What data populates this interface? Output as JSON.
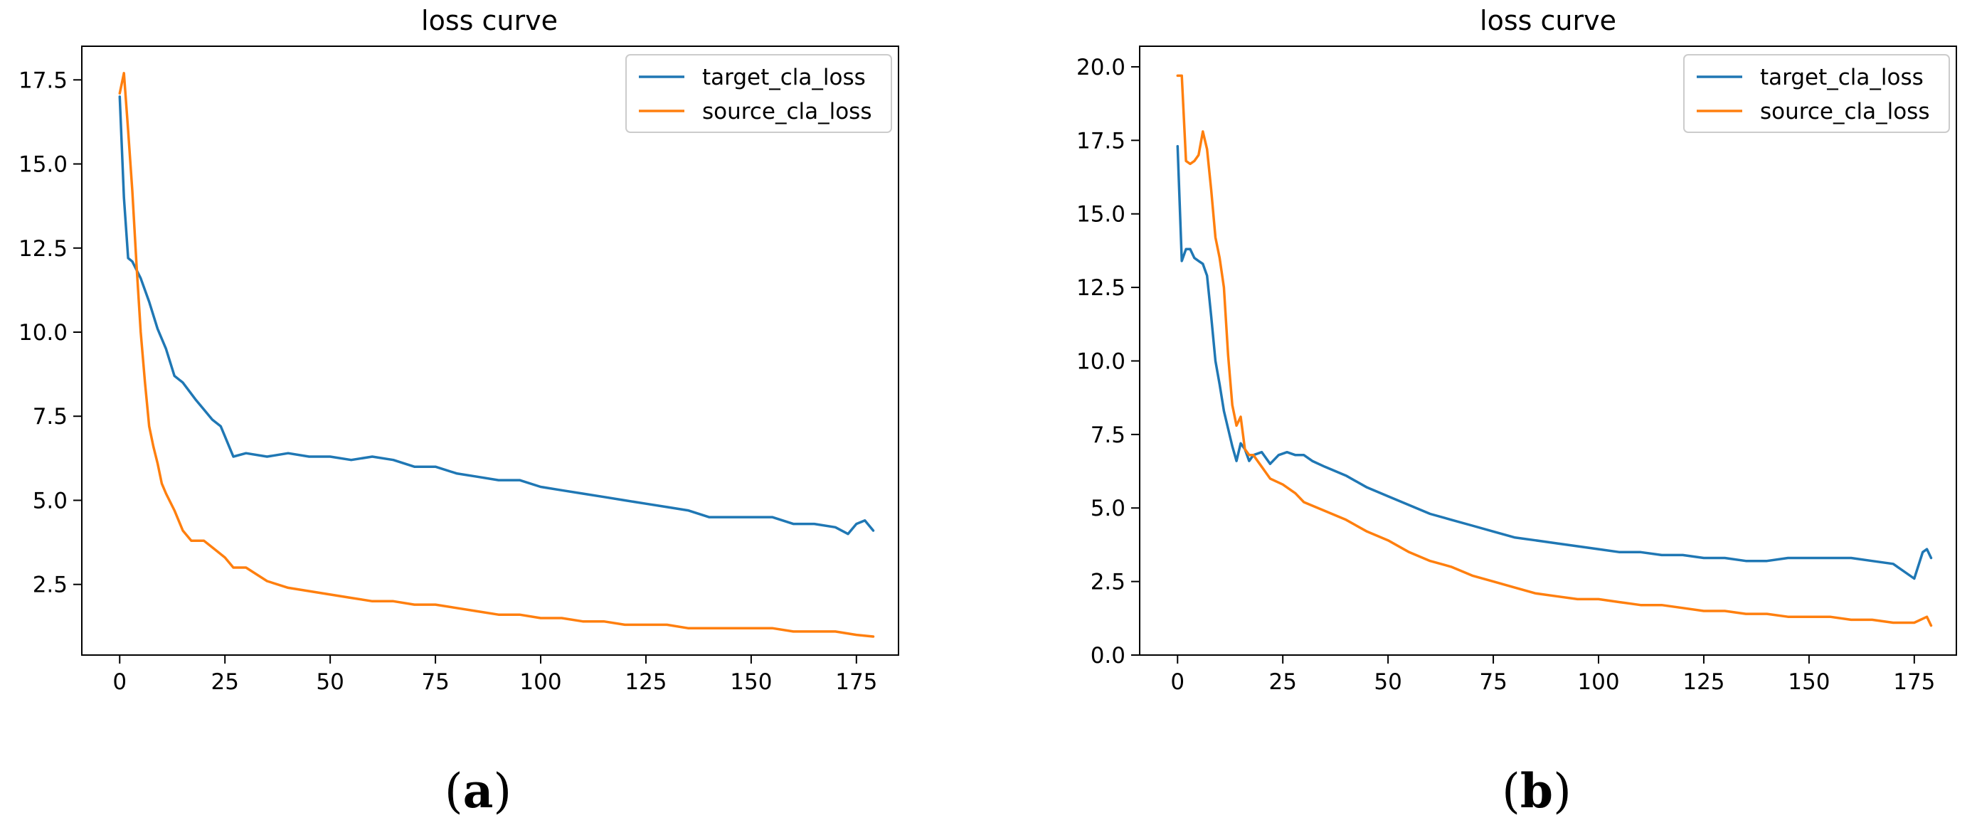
{
  "chart_data": [
    {
      "type": "line",
      "panel_label_open": "(",
      "panel_label_letter": "a",
      "panel_label_close": ")",
      "title": "loss curve",
      "xlabel": "",
      "ylabel": "",
      "xlim": [
        -9,
        185
      ],
      "ylim": [
        0.4,
        18.5
      ],
      "xticks": [
        0,
        25,
        50,
        75,
        100,
        125,
        150,
        175
      ],
      "yticks": [
        2.5,
        5.0,
        7.5,
        10.0,
        12.5,
        15.0,
        17.5
      ],
      "legend_position": "top-right",
      "series": [
        {
          "name": "target_cla_loss",
          "color": "#1f77b4",
          "x": [
            0,
            1,
            2,
            3,
            5,
            7,
            9,
            11,
            13,
            15,
            18,
            20,
            22,
            24,
            25,
            27,
            30,
            35,
            40,
            45,
            50,
            55,
            60,
            65,
            70,
            75,
            80,
            85,
            90,
            95,
            100,
            105,
            110,
            115,
            120,
            125,
            130,
            135,
            140,
            145,
            150,
            155,
            160,
            165,
            170,
            173,
            175,
            177,
            179
          ],
          "values": [
            17.0,
            14.0,
            12.2,
            12.1,
            11.6,
            10.9,
            10.1,
            9.5,
            8.7,
            8.5,
            8.0,
            7.7,
            7.4,
            7.2,
            6.9,
            6.3,
            6.4,
            6.3,
            6.4,
            6.3,
            6.3,
            6.2,
            6.3,
            6.2,
            6.0,
            6.0,
            5.8,
            5.7,
            5.6,
            5.6,
            5.4,
            5.3,
            5.2,
            5.1,
            5.0,
            4.9,
            4.8,
            4.7,
            4.5,
            4.5,
            4.5,
            4.5,
            4.3,
            4.3,
            4.2,
            4.0,
            4.3,
            4.4,
            4.1
          ]
        },
        {
          "name": "source_cla_loss",
          "color": "#ff7f0e",
          "x": [
            0,
            1,
            2,
            3,
            4,
            5,
            6,
            7,
            8,
            9,
            10,
            11,
            13,
            15,
            17,
            20,
            23,
            25,
            27,
            30,
            35,
            40,
            45,
            50,
            55,
            60,
            65,
            70,
            75,
            80,
            85,
            90,
            95,
            100,
            105,
            110,
            115,
            120,
            125,
            130,
            135,
            140,
            145,
            150,
            155,
            160,
            165,
            170,
            175,
            179
          ],
          "values": [
            17.1,
            17.7,
            16.0,
            14.2,
            12.0,
            10.0,
            8.5,
            7.2,
            6.6,
            6.1,
            5.5,
            5.2,
            4.7,
            4.1,
            3.8,
            3.8,
            3.5,
            3.3,
            3.0,
            3.0,
            2.6,
            2.4,
            2.3,
            2.2,
            2.1,
            2.0,
            2.0,
            1.9,
            1.9,
            1.8,
            1.7,
            1.6,
            1.6,
            1.5,
            1.5,
            1.4,
            1.4,
            1.3,
            1.3,
            1.3,
            1.2,
            1.2,
            1.2,
            1.2,
            1.2,
            1.1,
            1.1,
            1.1,
            1.0,
            0.95
          ]
        }
      ]
    },
    {
      "type": "line",
      "panel_label_open": "(",
      "panel_label_letter": "b",
      "panel_label_close": ")",
      "title": "loss curve",
      "xlabel": "",
      "ylabel": "",
      "xlim": [
        -9,
        185
      ],
      "ylim": [
        0.0,
        20.7
      ],
      "xticks": [
        0,
        25,
        50,
        75,
        100,
        125,
        150,
        175
      ],
      "yticks": [
        0.0,
        2.5,
        5.0,
        7.5,
        10.0,
        12.5,
        15.0,
        17.5,
        20.0
      ],
      "legend_position": "top-right",
      "series": [
        {
          "name": "target_cla_loss",
          "color": "#1f77b4",
          "x": [
            0,
            1,
            2,
            3,
            4,
            5,
            6,
            7,
            8,
            9,
            10,
            11,
            12,
            13,
            14,
            15,
            16,
            17,
            18,
            20,
            22,
            24,
            26,
            28,
            30,
            32,
            35,
            40,
            45,
            50,
            55,
            60,
            65,
            70,
            75,
            80,
            85,
            90,
            95,
            100,
            105,
            110,
            115,
            120,
            125,
            130,
            135,
            140,
            145,
            150,
            155,
            160,
            165,
            170,
            175,
            177,
            178,
            179
          ],
          "values": [
            17.3,
            13.4,
            13.8,
            13.8,
            13.5,
            13.4,
            13.3,
            12.9,
            11.5,
            10.0,
            9.2,
            8.3,
            7.7,
            7.1,
            6.6,
            7.2,
            7.0,
            6.6,
            6.8,
            6.9,
            6.5,
            6.8,
            6.9,
            6.8,
            6.8,
            6.6,
            6.4,
            6.1,
            5.7,
            5.4,
            5.1,
            4.8,
            4.6,
            4.4,
            4.2,
            4.0,
            3.9,
            3.8,
            3.7,
            3.6,
            3.5,
            3.5,
            3.4,
            3.4,
            3.3,
            3.3,
            3.2,
            3.2,
            3.3,
            3.3,
            3.3,
            3.3,
            3.2,
            3.1,
            2.6,
            3.5,
            3.6,
            3.3
          ]
        },
        {
          "name": "source_cla_loss",
          "color": "#ff7f0e",
          "x": [
            0,
            1,
            2,
            3,
            4,
            5,
            6,
            7,
            8,
            9,
            10,
            11,
            12,
            13,
            14,
            15,
            16,
            17,
            18,
            20,
            22,
            25,
            28,
            30,
            35,
            40,
            45,
            50,
            55,
            60,
            65,
            70,
            75,
            80,
            85,
            90,
            95,
            100,
            105,
            110,
            115,
            120,
            125,
            130,
            135,
            140,
            145,
            150,
            155,
            160,
            165,
            170,
            175,
            178,
            179
          ],
          "values": [
            19.7,
            19.7,
            16.8,
            16.7,
            16.8,
            17.0,
            17.8,
            17.2,
            15.8,
            14.2,
            13.5,
            12.5,
            10.2,
            8.5,
            7.8,
            8.1,
            7.0,
            6.8,
            6.8,
            6.4,
            6.0,
            5.8,
            5.5,
            5.2,
            4.9,
            4.6,
            4.2,
            3.9,
            3.5,
            3.2,
            3.0,
            2.7,
            2.5,
            2.3,
            2.1,
            2.0,
            1.9,
            1.9,
            1.8,
            1.7,
            1.7,
            1.6,
            1.5,
            1.5,
            1.4,
            1.4,
            1.3,
            1.3,
            1.3,
            1.2,
            1.2,
            1.1,
            1.1,
            1.3,
            1.0
          ]
        }
      ]
    }
  ]
}
